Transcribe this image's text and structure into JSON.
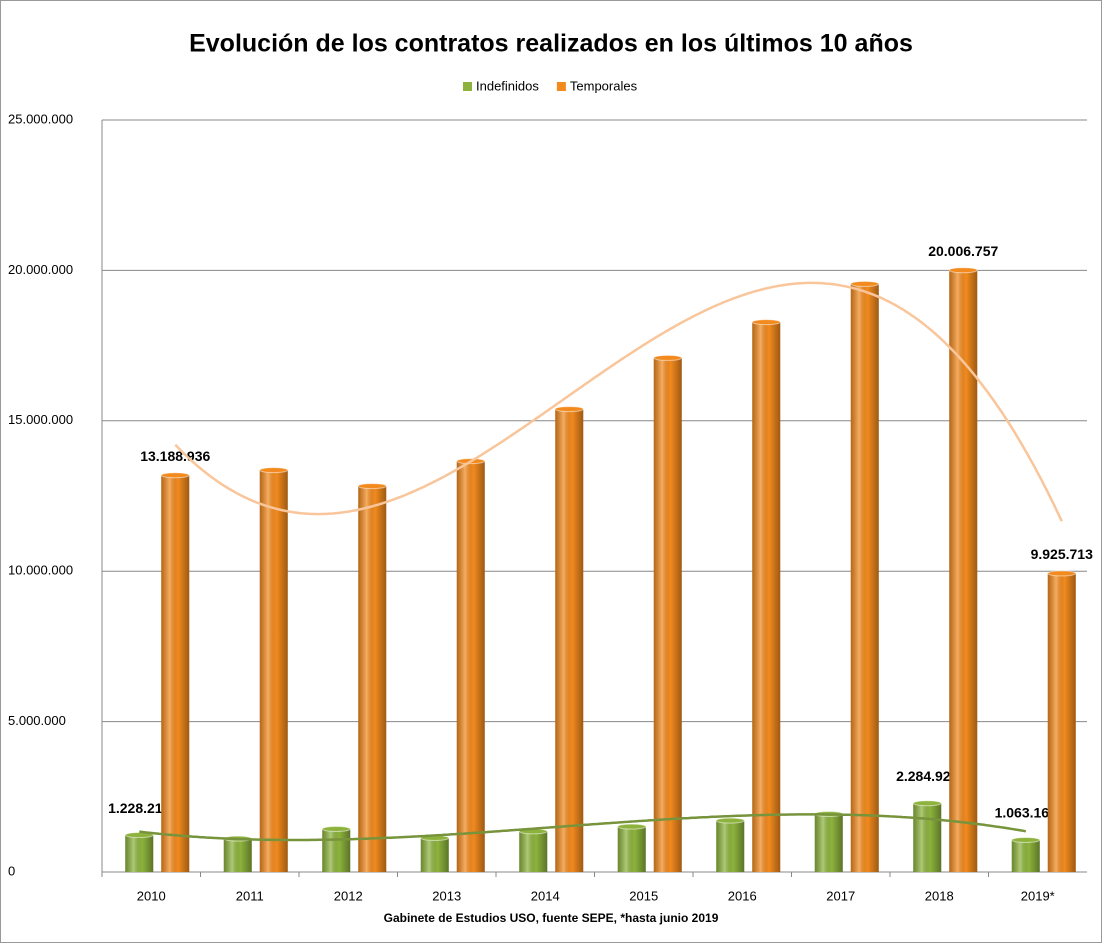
{
  "chart_data": {
    "type": "bar",
    "title": "Evolución de los contratos realizados en los últimos 10 años",
    "x_label": "Gabinete de Estudios USO, fuente SEPE, *hasta junio 2019",
    "categories": [
      "2010",
      "2011",
      "2012",
      "2013",
      "2014",
      "2015",
      "2016",
      "2017",
      "2018",
      "2019*"
    ],
    "series": [
      {
        "name": "Indefinidos",
        "color": "#8db33d",
        "trend_color": "#77933c",
        "trendline_order": 3,
        "values": [
          1228214,
          1110000,
          1430000,
          1130000,
          1350000,
          1510000,
          1710000,
          1930000,
          2284924,
          1063166
        ],
        "value_labels": [
          "1.228.214",
          null,
          null,
          null,
          null,
          null,
          null,
          null,
          "2.284.924",
          "1.063.166"
        ]
      },
      {
        "name": "Temporales",
        "color": "#f28a1e",
        "trend_color": "#f9c59a",
        "trendline_order": 3,
        "values": [
          13188936,
          13360000,
          12830000,
          13660000,
          15390000,
          17090000,
          18280000,
          19550000,
          20006757,
          9925713
        ],
        "value_labels": [
          "13.188.936",
          null,
          null,
          null,
          null,
          null,
          null,
          null,
          "20.006.757",
          "9.925.713"
        ]
      }
    ],
    "ylim": [
      0,
      25000000
    ],
    "yticks": [
      0,
      {
        "value": 5000000,
        "label": "5.000.000"
      },
      {
        "value": 10000000,
        "label": "10.000.000"
      },
      {
        "value": 15000000,
        "label": "15.000.000"
      },
      {
        "value": 20000000,
        "label": "20.000.000"
      },
      {
        "value": 25000000,
        "label": "25.000.000"
      }
    ],
    "grid": true,
    "legend": "top"
  }
}
